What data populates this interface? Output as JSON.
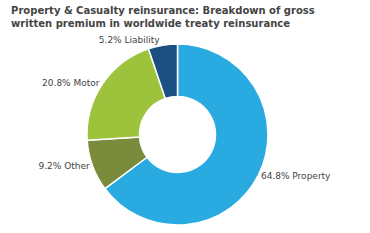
{
  "chart_data": {
    "type": "pie",
    "title": "Property & Casualty reinsurance: Breakdown of gross",
    "subtitle": "written premium in worldwide treaty reinsurance",
    "categories": [
      "Property",
      "Other",
      "Motor",
      "Liability"
    ],
    "values": [
      64.8,
      9.2,
      20.8,
      5.2
    ],
    "value_labels": [
      "64.8% Property",
      "9.2% Other",
      "20.8% Motor",
      "5.2% Liability"
    ],
    "colors": [
      "#29ABE2",
      "#7A8C3C",
      "#9DC23C",
      "#1B4F82"
    ],
    "data_labels": true
  }
}
